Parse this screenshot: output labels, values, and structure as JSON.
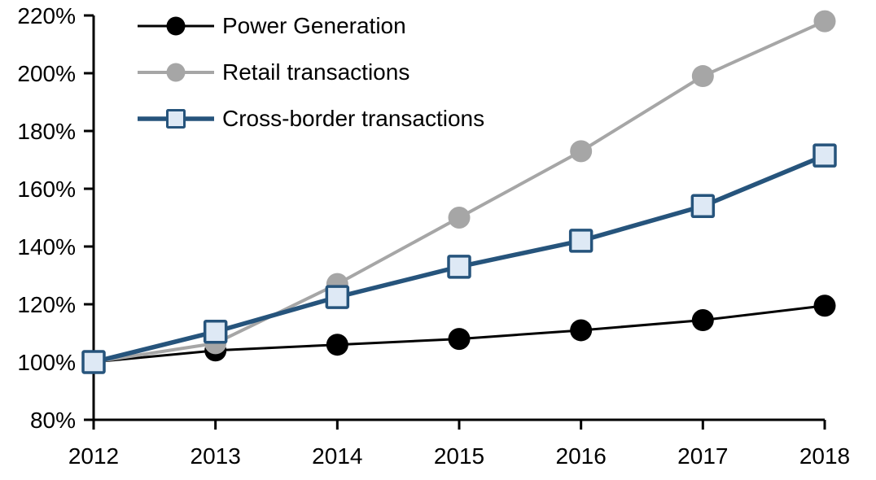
{
  "chart_data": {
    "type": "line",
    "title": "",
    "xlabel": "",
    "ylabel": "",
    "grid": false,
    "legend_position": "top-left",
    "x": [
      2012,
      2013,
      2014,
      2015,
      2016,
      2017,
      2018
    ],
    "x_tick_labels": [
      "2012",
      "2013",
      "2014",
      "2015",
      "2016",
      "2017",
      "2018"
    ],
    "ylim": [
      80,
      220
    ],
    "y_ticks": [
      80,
      100,
      120,
      140,
      160,
      180,
      200,
      220
    ],
    "y_tick_labels": [
      "80%",
      "100%",
      "120%",
      "140%",
      "160%",
      "180%",
      "200%",
      "220%"
    ],
    "axis_color": "#000000",
    "series": [
      {
        "name": "Power Generation",
        "marker": "circle",
        "color": "#000000",
        "marker_fill": "#000000",
        "line_width": 3,
        "values": [
          100,
          104,
          106,
          108,
          111,
          114.5,
          119.5
        ]
      },
      {
        "name": "Retail transactions",
        "marker": "circle",
        "color": "#A6A6A6",
        "marker_fill": "#A6A6A6",
        "line_width": 4,
        "values": [
          100,
          106.5,
          127,
          150,
          173,
          199,
          218
        ]
      },
      {
        "name": "Cross-border transactions",
        "marker": "square",
        "color": "#26547C",
        "marker_fill": "#DEE9F5",
        "line_width": 5.5,
        "values": [
          100,
          110.5,
          122.5,
          133,
          142,
          154,
          171.5
        ]
      }
    ]
  }
}
